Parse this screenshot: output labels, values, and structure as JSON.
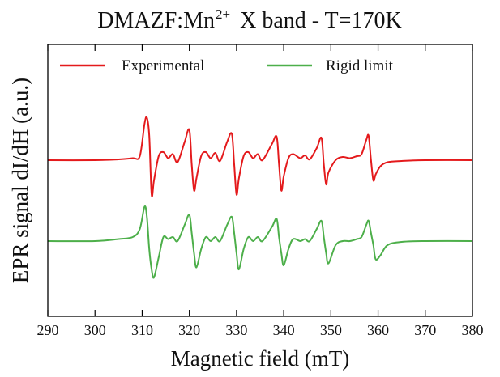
{
  "chart_data": {
    "type": "line",
    "title": {
      "prefix": "DMAZF:Mn",
      "superscript": "2+",
      "suffix": "X band - T=170K"
    },
    "xlabel": "Magnetic field (mT)",
    "ylabel": "EPR signal dI/dH (a.u.)",
    "xlim": [
      290,
      380
    ],
    "x_ticks": [
      290,
      300,
      310,
      320,
      330,
      340,
      350,
      360,
      370,
      380
    ],
    "y_ticks_visible": false,
    "grid": false,
    "legend_position": "top",
    "series": [
      {
        "name": "Experimental",
        "color": "#e41a1c",
        "baseline_offset": 1.0,
        "points": [
          [
            290,
            0.0
          ],
          [
            300,
            0.0
          ],
          [
            305,
            0.02
          ],
          [
            308,
            0.05
          ],
          [
            309.5,
            0.1
          ],
          [
            310.5,
            0.9
          ],
          [
            311.0,
            1.05
          ],
          [
            311.5,
            0.6
          ],
          [
            312.0,
            -0.85
          ],
          [
            312.5,
            -0.5
          ],
          [
            313.5,
            0.1
          ],
          [
            314.5,
            0.2
          ],
          [
            315.5,
            0.05
          ],
          [
            316.5,
            0.15
          ],
          [
            317.5,
            -0.05
          ],
          [
            319.0,
            0.45
          ],
          [
            320.0,
            0.75
          ],
          [
            320.5,
            -0.1
          ],
          [
            321.0,
            -0.75
          ],
          [
            321.5,
            -0.45
          ],
          [
            322.5,
            0.1
          ],
          [
            323.5,
            0.2
          ],
          [
            324.5,
            0.05
          ],
          [
            325.5,
            0.18
          ],
          [
            326.5,
            -0.02
          ],
          [
            328.0,
            0.45
          ],
          [
            329.0,
            0.65
          ],
          [
            329.5,
            -0.1
          ],
          [
            330.0,
            -0.85
          ],
          [
            330.5,
            -0.45
          ],
          [
            331.5,
            0.1
          ],
          [
            332.5,
            0.2
          ],
          [
            333.5,
            0.05
          ],
          [
            334.5,
            0.15
          ],
          [
            335.5,
            0.0
          ],
          [
            337.5,
            0.4
          ],
          [
            338.5,
            0.58
          ],
          [
            339.0,
            -0.1
          ],
          [
            339.5,
            -0.75
          ],
          [
            340.0,
            -0.4
          ],
          [
            341.0,
            0.05
          ],
          [
            342.0,
            0.15
          ],
          [
            343.5,
            0.05
          ],
          [
            344.5,
            0.12
          ],
          [
            345.5,
            0.02
          ],
          [
            347.0,
            0.3
          ],
          [
            348.0,
            0.55
          ],
          [
            348.5,
            -0.1
          ],
          [
            349.0,
            -0.6
          ],
          [
            349.5,
            -0.3
          ],
          [
            351.0,
            0.0
          ],
          [
            352.5,
            0.08
          ],
          [
            354.0,
            0.05
          ],
          [
            355.5,
            0.1
          ],
          [
            356.5,
            0.15
          ],
          [
            357.5,
            0.5
          ],
          [
            358.0,
            0.6
          ],
          [
            358.5,
            0.0
          ],
          [
            359.0,
            -0.5
          ],
          [
            359.5,
            -0.35
          ],
          [
            360.5,
            -0.15
          ],
          [
            362.0,
            -0.05
          ],
          [
            365.0,
            -0.02
          ],
          [
            370.0,
            0.0
          ],
          [
            380,
            0.0
          ]
        ]
      },
      {
        "name": "Rigid limit",
        "color": "#4daf4a",
        "baseline_offset": -1.0,
        "points": [
          [
            290,
            0.0
          ],
          [
            300,
            0.0
          ],
          [
            305,
            0.05
          ],
          [
            308,
            0.1
          ],
          [
            309.5,
            0.3
          ],
          [
            310.5,
            0.85
          ],
          [
            311.0,
            0.6
          ],
          [
            311.5,
            -0.2
          ],
          [
            312.0,
            -0.7
          ],
          [
            312.5,
            -0.9
          ],
          [
            313.5,
            -0.4
          ],
          [
            314.5,
            0.1
          ],
          [
            315.5,
            0.05
          ],
          [
            316.5,
            0.1
          ],
          [
            317.5,
            0.0
          ],
          [
            319.0,
            0.4
          ],
          [
            320.0,
            0.65
          ],
          [
            320.5,
            0.2
          ],
          [
            321.0,
            -0.3
          ],
          [
            321.5,
            -0.65
          ],
          [
            322.5,
            -0.2
          ],
          [
            323.5,
            0.1
          ],
          [
            324.5,
            0.0
          ],
          [
            325.5,
            0.1
          ],
          [
            326.5,
            0.0
          ],
          [
            328.0,
            0.4
          ],
          [
            329.0,
            0.6
          ],
          [
            329.5,
            0.2
          ],
          [
            330.0,
            -0.3
          ],
          [
            330.5,
            -0.7
          ],
          [
            331.5,
            -0.2
          ],
          [
            332.5,
            0.1
          ],
          [
            333.5,
            0.0
          ],
          [
            334.5,
            0.1
          ],
          [
            335.5,
            0.0
          ],
          [
            337.5,
            0.35
          ],
          [
            338.5,
            0.55
          ],
          [
            339.0,
            0.1
          ],
          [
            339.5,
            -0.3
          ],
          [
            340.0,
            -0.6
          ],
          [
            341.0,
            -0.2
          ],
          [
            342.0,
            0.05
          ],
          [
            343.5,
            0.0
          ],
          [
            344.5,
            0.05
          ],
          [
            345.5,
            0.0
          ],
          [
            347.0,
            0.3
          ],
          [
            348.0,
            0.5
          ],
          [
            348.5,
            0.1
          ],
          [
            349.0,
            -0.3
          ],
          [
            349.5,
            -0.55
          ],
          [
            351.0,
            -0.1
          ],
          [
            352.5,
            0.0
          ],
          [
            354.0,
            0.0
          ],
          [
            355.5,
            0.05
          ],
          [
            356.5,
            0.1
          ],
          [
            357.5,
            0.4
          ],
          [
            358.0,
            0.5
          ],
          [
            358.5,
            0.2
          ],
          [
            359.0,
            -0.1
          ],
          [
            359.5,
            -0.45
          ],
          [
            360.5,
            -0.35
          ],
          [
            362.0,
            -0.1
          ],
          [
            365.0,
            -0.02
          ],
          [
            370.0,
            0.0
          ],
          [
            380,
            0.0
          ]
        ]
      }
    ]
  }
}
